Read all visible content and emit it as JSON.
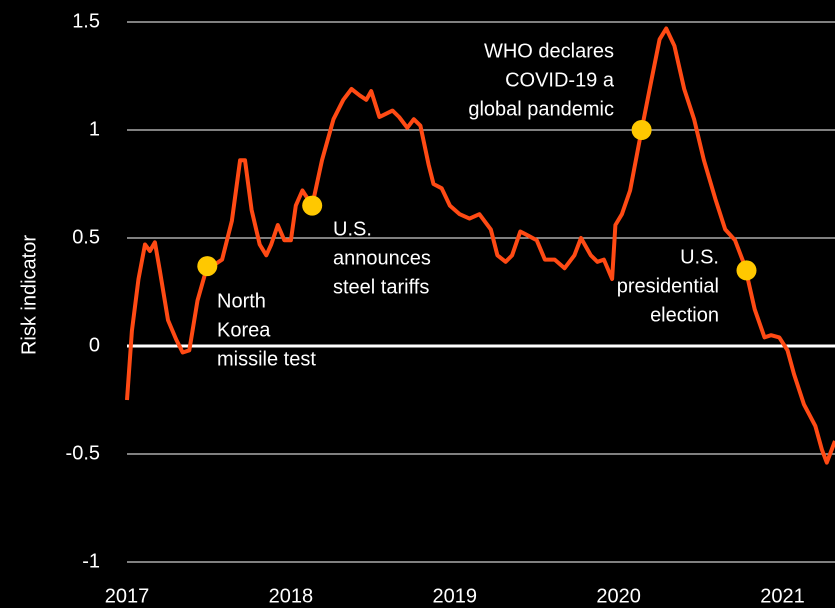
{
  "chart_data": {
    "type": "line",
    "y_label": "Risk indicator",
    "xlim": [
      2017,
      2021.32
    ],
    "xticks": [
      2017,
      2018,
      2019,
      2020,
      2021
    ],
    "ylim": [
      -1,
      1.5
    ],
    "yticks": [
      1.5,
      1,
      0.5,
      0,
      -0.5,
      -1
    ],
    "grid": true,
    "series": [
      {
        "color": "#ff4a14",
        "x": [
          2017.0,
          2017.03,
          2017.07,
          2017.11,
          2017.14,
          2017.17,
          2017.2,
          2017.25,
          2017.3,
          2017.34,
          2017.38,
          2017.43,
          2017.49,
          2017.54,
          2017.58,
          2017.64,
          2017.69,
          2017.72,
          2017.76,
          2017.81,
          2017.85,
          2017.88,
          2017.92,
          2017.96,
          2018.0,
          2018.03,
          2018.07,
          2018.13,
          2018.19,
          2018.26,
          2018.32,
          2018.37,
          2018.42,
          2018.46,
          2018.49,
          2018.54,
          2018.62,
          2018.66,
          2018.71,
          2018.75,
          2018.79,
          2018.84,
          2018.87,
          2018.92,
          2018.97,
          2019.03,
          2019.09,
          2019.15,
          2019.22,
          2019.26,
          2019.31,
          2019.35,
          2019.4,
          2019.45,
          2019.5,
          2019.55,
          2019.61,
          2019.67,
          2019.73,
          2019.77,
          2019.83,
          2019.87,
          2019.91,
          2019.96,
          2019.98,
          2020.02,
          2020.07,
          2020.14,
          2020.2,
          2020.25,
          2020.29,
          2020.34,
          2020.4,
          2020.46,
          2020.52,
          2020.59,
          2020.65,
          2020.71,
          2020.77,
          2020.83,
          2020.89,
          2020.93,
          2020.98,
          2021.03,
          2021.07,
          2021.13,
          2021.2,
          2021.24,
          2021.27,
          2021.32
        ],
        "values": [
          -0.25,
          0.07,
          0.31,
          0.47,
          0.44,
          0.48,
          0.35,
          0.12,
          0.03,
          -0.03,
          -0.02,
          0.21,
          0.37,
          0.38,
          0.4,
          0.58,
          0.86,
          0.86,
          0.63,
          0.47,
          0.42,
          0.47,
          0.56,
          0.49,
          0.49,
          0.65,
          0.72,
          0.65,
          0.86,
          1.05,
          1.14,
          1.19,
          1.16,
          1.14,
          1.18,
          1.06,
          1.09,
          1.06,
          1.01,
          1.05,
          1.02,
          0.84,
          0.75,
          0.73,
          0.65,
          0.61,
          0.59,
          0.61,
          0.54,
          0.42,
          0.39,
          0.42,
          0.53,
          0.51,
          0.49,
          0.4,
          0.4,
          0.36,
          0.42,
          0.5,
          0.42,
          0.39,
          0.4,
          0.31,
          0.56,
          0.61,
          0.72,
          1.0,
          1.23,
          1.42,
          1.47,
          1.39,
          1.19,
          1.05,
          0.86,
          0.68,
          0.54,
          0.49,
          0.37,
          0.17,
          0.04,
          0.05,
          0.04,
          -0.02,
          -0.13,
          -0.27,
          -0.37,
          -0.48,
          -0.54,
          -0.44
        ]
      }
    ],
    "events": {
      "color": "#ffc800",
      "x": [
        2017.49,
        2018.13,
        2020.14,
        2020.78
      ],
      "values": [
        0.37,
        0.65,
        1.0,
        0.35
      ],
      "labels": [
        [
          "North",
          "Korea",
          "missile test"
        ],
        [
          "U.S.",
          "announces",
          "steel tariffs"
        ],
        [
          "WHO declares",
          "COVID-19 a",
          "global pandemic"
        ],
        [
          "U.S.",
          "presidential",
          "election"
        ]
      ]
    }
  }
}
